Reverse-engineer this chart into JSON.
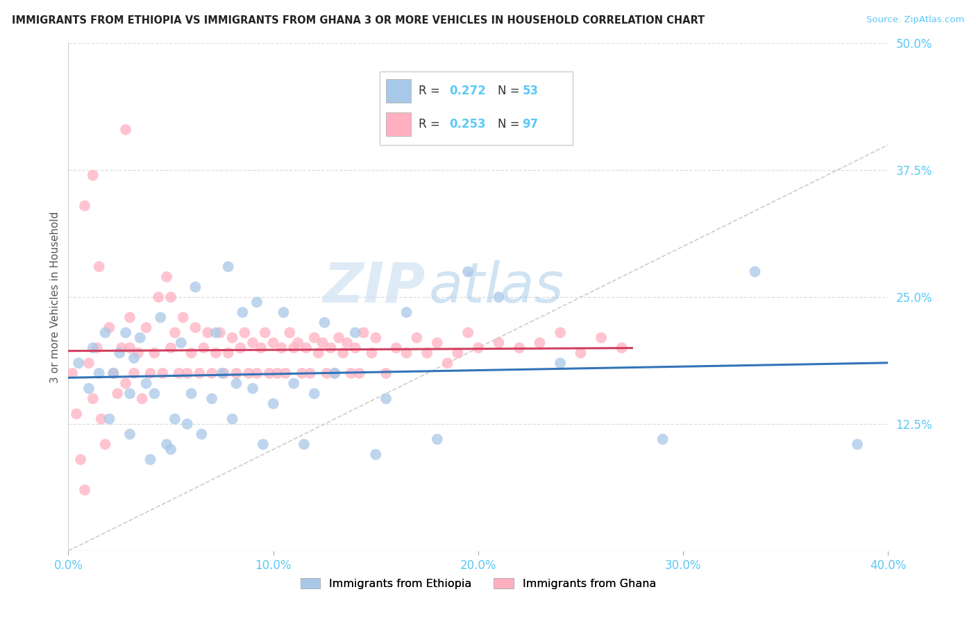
{
  "title": "IMMIGRANTS FROM ETHIOPIA VS IMMIGRANTS FROM GHANA 3 OR MORE VEHICLES IN HOUSEHOLD CORRELATION CHART",
  "source": "Source: ZipAtlas.com",
  "ylabel_label": "3 or more Vehicles in Household",
  "xlim": [
    0.0,
    0.4
  ],
  "ylim": [
    0.0,
    0.5
  ],
  "x_ticks": [
    0.0,
    0.1,
    0.2,
    0.3,
    0.4
  ],
  "y_ticks": [
    0.0,
    0.125,
    0.25,
    0.375,
    0.5
  ],
  "y_tick_labels_right": [
    "50.0%",
    "37.5%",
    "25.0%",
    "12.5%"
  ],
  "y_tick_vals_right": [
    0.5,
    0.375,
    0.25,
    0.125
  ],
  "legend1_R": "0.272",
  "legend1_N": "53",
  "legend2_R": "0.253",
  "legend2_N": "97",
  "blue_color": "#A8C8E8",
  "pink_color": "#FFB0C0",
  "trend_blue": "#3373B8",
  "trend_pink": "#D04060",
  "diagonal_color": "#CCCCCC",
  "watermark_zip": "ZIP",
  "watermark_atlas": "atlas",
  "background_color": "#FFFFFF",
  "grid_color": "#DDDDDD",
  "tick_color": "#5BC8F5",
  "ethiopia_x": [
    0.005,
    0.01,
    0.012,
    0.015,
    0.018,
    0.02,
    0.022,
    0.025,
    0.028,
    0.03,
    0.03,
    0.032,
    0.035,
    0.038,
    0.04,
    0.042,
    0.045,
    0.048,
    0.05,
    0.052,
    0.055,
    0.058,
    0.06,
    0.062,
    0.065,
    0.07,
    0.072,
    0.075,
    0.078,
    0.08,
    0.082,
    0.085,
    0.09,
    0.092,
    0.095,
    0.1,
    0.105,
    0.11,
    0.115,
    0.12,
    0.125,
    0.13,
    0.14,
    0.15,
    0.155,
    0.165,
    0.18,
    0.195,
    0.21,
    0.24,
    0.29,
    0.335,
    0.385
  ],
  "ethiopia_y": [
    0.185,
    0.16,
    0.2,
    0.175,
    0.215,
    0.13,
    0.175,
    0.195,
    0.215,
    0.115,
    0.155,
    0.19,
    0.21,
    0.165,
    0.09,
    0.155,
    0.23,
    0.105,
    0.1,
    0.13,
    0.205,
    0.125,
    0.155,
    0.26,
    0.115,
    0.15,
    0.215,
    0.175,
    0.28,
    0.13,
    0.165,
    0.235,
    0.16,
    0.245,
    0.105,
    0.145,
    0.235,
    0.165,
    0.105,
    0.155,
    0.225,
    0.175,
    0.215,
    0.095,
    0.15,
    0.235,
    0.11,
    0.275,
    0.25,
    0.185,
    0.11,
    0.275,
    0.105
  ],
  "ghana_x": [
    0.002,
    0.004,
    0.006,
    0.008,
    0.01,
    0.012,
    0.014,
    0.015,
    0.016,
    0.018,
    0.02,
    0.022,
    0.024,
    0.026,
    0.028,
    0.03,
    0.03,
    0.032,
    0.034,
    0.036,
    0.038,
    0.04,
    0.042,
    0.044,
    0.046,
    0.048,
    0.05,
    0.05,
    0.052,
    0.054,
    0.056,
    0.058,
    0.06,
    0.062,
    0.064,
    0.066,
    0.068,
    0.07,
    0.072,
    0.074,
    0.076,
    0.078,
    0.08,
    0.082,
    0.084,
    0.086,
    0.088,
    0.09,
    0.092,
    0.094,
    0.096,
    0.098,
    0.1,
    0.102,
    0.104,
    0.106,
    0.108,
    0.11,
    0.112,
    0.114,
    0.116,
    0.118,
    0.12,
    0.122,
    0.124,
    0.126,
    0.128,
    0.13,
    0.132,
    0.134,
    0.136,
    0.138,
    0.14,
    0.142,
    0.144,
    0.148,
    0.15,
    0.155,
    0.16,
    0.165,
    0.17,
    0.175,
    0.18,
    0.185,
    0.19,
    0.195,
    0.2,
    0.21,
    0.22,
    0.23,
    0.24,
    0.25,
    0.26,
    0.27,
    0.028,
    0.008,
    0.012
  ],
  "ghana_y": [
    0.175,
    0.135,
    0.09,
    0.06,
    0.185,
    0.15,
    0.2,
    0.28,
    0.13,
    0.105,
    0.22,
    0.175,
    0.155,
    0.2,
    0.165,
    0.2,
    0.23,
    0.175,
    0.195,
    0.15,
    0.22,
    0.175,
    0.195,
    0.25,
    0.175,
    0.27,
    0.2,
    0.25,
    0.215,
    0.175,
    0.23,
    0.175,
    0.195,
    0.22,
    0.175,
    0.2,
    0.215,
    0.175,
    0.195,
    0.215,
    0.175,
    0.195,
    0.21,
    0.175,
    0.2,
    0.215,
    0.175,
    0.205,
    0.175,
    0.2,
    0.215,
    0.175,
    0.205,
    0.175,
    0.2,
    0.175,
    0.215,
    0.2,
    0.205,
    0.175,
    0.2,
    0.175,
    0.21,
    0.195,
    0.205,
    0.175,
    0.2,
    0.175,
    0.21,
    0.195,
    0.205,
    0.175,
    0.2,
    0.175,
    0.215,
    0.195,
    0.21,
    0.175,
    0.2,
    0.195,
    0.21,
    0.195,
    0.205,
    0.185,
    0.195,
    0.215,
    0.2,
    0.205,
    0.2,
    0.205,
    0.215,
    0.195,
    0.21,
    0.2,
    0.415,
    0.34,
    0.37
  ]
}
